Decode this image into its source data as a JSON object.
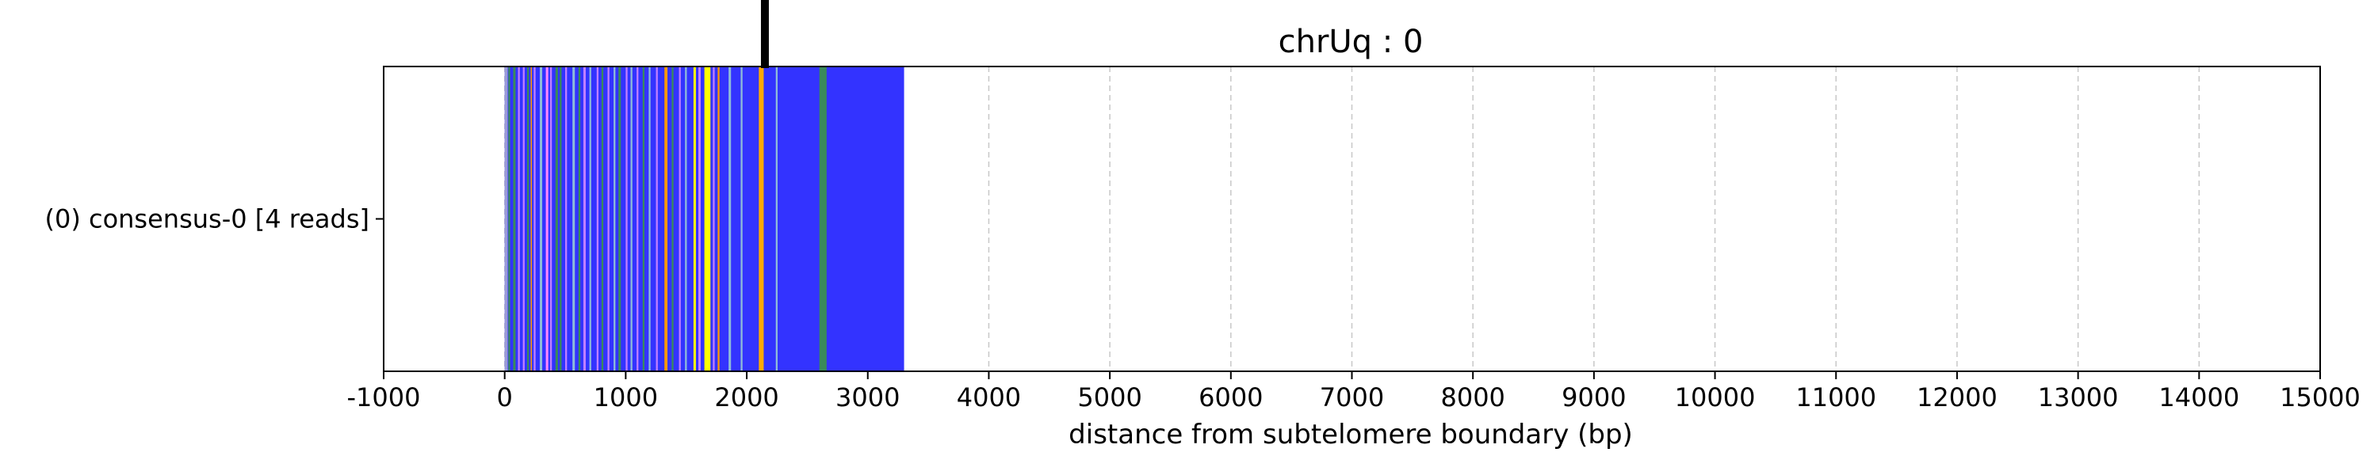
{
  "chart_data": {
    "type": "bar",
    "orientation": "horizontal",
    "title": "chrUq : 0",
    "xlabel": "distance from subtelomere boundary (bp)",
    "ylabel": "",
    "xlim": [
      -1000,
      15000
    ],
    "xticks": [
      -1000,
      0,
      1000,
      2000,
      3000,
      4000,
      5000,
      6000,
      7000,
      8000,
      9000,
      10000,
      11000,
      12000,
      13000,
      14000,
      15000
    ],
    "xtick_labels": [
      "-1000",
      "0",
      "1000",
      "2000",
      "3000",
      "4000",
      "5000",
      "6000",
      "7000",
      "8000",
      "9000",
      "10000",
      "11000",
      "12000",
      "13000",
      "14000",
      "15000"
    ],
    "grid": "x-dashed",
    "categories": [
      "(0) consensus-0 [4 reads]"
    ],
    "read": {
      "start": 0,
      "end": 3300,
      "base_color": "#3333ff"
    },
    "marker_x": 2150,
    "motif_bands": [
      {
        "x0": 0,
        "x1": 25,
        "color": "#9a9ad8"
      },
      {
        "x0": 30,
        "x1": 45,
        "color": "#3a8a5a"
      },
      {
        "x0": 70,
        "x1": 90,
        "color": "#3a8a5a"
      },
      {
        "x0": 110,
        "x1": 125,
        "color": "#c080ff"
      },
      {
        "x0": 150,
        "x1": 165,
        "color": "#c080ff"
      },
      {
        "x0": 185,
        "x1": 200,
        "color": "#3a8a5a"
      },
      {
        "x0": 215,
        "x1": 225,
        "color": "#ff9900"
      },
      {
        "x0": 240,
        "x1": 255,
        "color": "#c080ff"
      },
      {
        "x0": 290,
        "x1": 310,
        "color": "#8fbcd8"
      },
      {
        "x0": 340,
        "x1": 360,
        "color": "#ff88ff"
      },
      {
        "x0": 375,
        "x1": 390,
        "color": "#c080ff"
      },
      {
        "x0": 420,
        "x1": 440,
        "color": "#3a8a5a"
      },
      {
        "x0": 455,
        "x1": 470,
        "color": "#3a8a5a"
      },
      {
        "x0": 500,
        "x1": 515,
        "color": "#c080ff"
      },
      {
        "x0": 560,
        "x1": 580,
        "color": "#8fbcd8"
      },
      {
        "x0": 610,
        "x1": 625,
        "color": "#3a8a5a"
      },
      {
        "x0": 650,
        "x1": 670,
        "color": "#c080ff"
      },
      {
        "x0": 700,
        "x1": 715,
        "color": "#8fbcd8"
      },
      {
        "x0": 760,
        "x1": 775,
        "color": "#c080ff"
      },
      {
        "x0": 800,
        "x1": 815,
        "color": "#3a8a5a"
      },
      {
        "x0": 850,
        "x1": 865,
        "color": "#c080ff"
      },
      {
        "x0": 900,
        "x1": 915,
        "color": "#8fbcd8"
      },
      {
        "x0": 940,
        "x1": 960,
        "color": "#3a8a5a"
      },
      {
        "x0": 1000,
        "x1": 1015,
        "color": "#c080ff"
      },
      {
        "x0": 1040,
        "x1": 1055,
        "color": "#8fbcd8"
      },
      {
        "x0": 1090,
        "x1": 1105,
        "color": "#c080ff"
      },
      {
        "x0": 1140,
        "x1": 1155,
        "color": "#3a8a5a"
      },
      {
        "x0": 1190,
        "x1": 1205,
        "color": "#8fbcd8"
      },
      {
        "x0": 1250,
        "x1": 1265,
        "color": "#c080ff"
      },
      {
        "x0": 1320,
        "x1": 1345,
        "color": "#ff9900"
      },
      {
        "x0": 1380,
        "x1": 1395,
        "color": "#3a8a5a"
      },
      {
        "x0": 1440,
        "x1": 1455,
        "color": "#c080ff"
      },
      {
        "x0": 1490,
        "x1": 1505,
        "color": "#8fbcd8"
      },
      {
        "x0": 1560,
        "x1": 1580,
        "color": "#ffff00"
      },
      {
        "x0": 1600,
        "x1": 1620,
        "color": "#c080ff"
      },
      {
        "x0": 1650,
        "x1": 1700,
        "color": "#ffff00"
      },
      {
        "x0": 1720,
        "x1": 1735,
        "color": "#c080ff"
      },
      {
        "x0": 1760,
        "x1": 1775,
        "color": "#ff9900"
      },
      {
        "x0": 1850,
        "x1": 1870,
        "color": "#8fbcd8"
      },
      {
        "x0": 1950,
        "x1": 1965,
        "color": "#8fbcd8"
      },
      {
        "x0": 2100,
        "x1": 2140,
        "color": "#ffaa00"
      },
      {
        "x0": 2240,
        "x1": 2255,
        "color": "#8fbcd8"
      },
      {
        "x0": 2600,
        "x1": 2660,
        "color": "#3a8a5a"
      }
    ]
  }
}
